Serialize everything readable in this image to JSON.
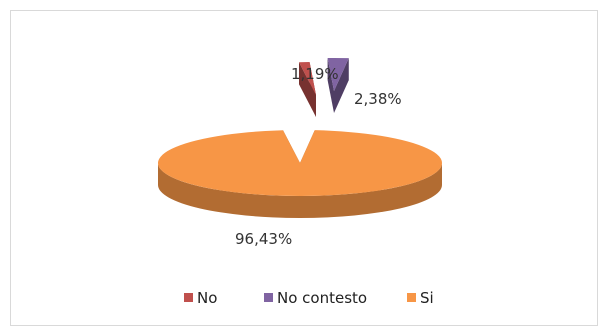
{
  "chart_data": {
    "type": "pie",
    "title": "",
    "style": "3d-exploded",
    "slices": [
      {
        "name": "No",
        "value": 1.19,
        "label": "1,19%",
        "color": "#c0504d"
      },
      {
        "name": "No contesto",
        "value": 2.38,
        "label": "2,38%",
        "color": "#8064a2"
      },
      {
        "name": "Si",
        "value": 96.43,
        "label": "96,43%",
        "color": "#f79646"
      }
    ],
    "legend_position": "bottom"
  }
}
